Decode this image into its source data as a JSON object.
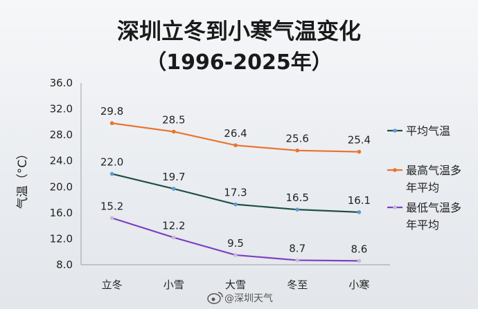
{
  "chart_data": {
    "type": "line",
    "title": "深圳立冬到小寒气温变化",
    "subtitle": "（1996-2025年）",
    "ylabel": "气温（°C）",
    "xlabel": "",
    "categories": [
      "立冬",
      "小雪",
      "大雪",
      "冬至",
      "小寒"
    ],
    "ylim": [
      8.0,
      36.0
    ],
    "yticks": [
      "8.0",
      "12.0",
      "16.0",
      "20.0",
      "24.0",
      "28.0",
      "32.0",
      "36.0"
    ],
    "grid": false,
    "legend_position": "right",
    "series": [
      {
        "name": "平均气温",
        "values": [
          22.0,
          19.7,
          17.3,
          16.5,
          16.1
        ],
        "labels": [
          "22.0",
          "19.7",
          "17.3",
          "16.5",
          "16.1"
        ],
        "color": "#1f4e4a",
        "marker_color": "#5b9bd5"
      },
      {
        "name": "最高气温多年平均",
        "legend_lines": [
          "最高气温多",
          "年平均"
        ],
        "values": [
          29.8,
          28.5,
          26.4,
          25.6,
          25.4
        ],
        "labels": [
          "29.8",
          "28.5",
          "26.4",
          "25.6",
          "25.4"
        ],
        "color": "#e8742c",
        "marker_color": "#e8742c"
      },
      {
        "name": "最低气温多年平均",
        "legend_lines": [
          "最低气温多",
          "年平均"
        ],
        "values": [
          15.2,
          12.2,
          9.5,
          8.7,
          8.6
        ],
        "labels": [
          "15.2",
          "12.2",
          "9.5",
          "8.7",
          "8.6"
        ],
        "color": "#7b3fc4",
        "marker_color": "#c8b8d8"
      }
    ]
  },
  "watermark": "@深圳天气"
}
